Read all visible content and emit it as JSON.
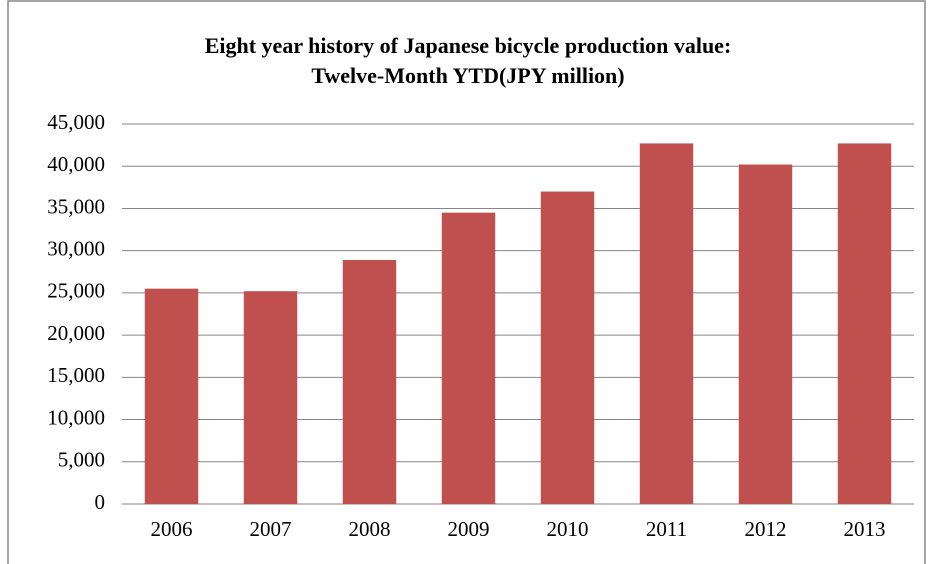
{
  "chart_data": {
    "type": "bar",
    "title": [
      "Eight year history of Japanese bicycle production value:",
      "Twelve-Month YTD(JPY million)"
    ],
    "categories": [
      "2006",
      "2007",
      "2008",
      "2009",
      "2010",
      "2011",
      "2012",
      "2013"
    ],
    "values": [
      25500,
      25200,
      28900,
      34500,
      37000,
      42700,
      40200,
      42700
    ],
    "color": "#c0504d",
    "ylim": [
      0,
      45000
    ],
    "yticks": [
      0,
      {
        "value": 5000,
        "label": "5,000"
      },
      {
        "value": 10000,
        "label": "10,000"
      },
      {
        "value": 15000,
        "label": "15,000"
      },
      {
        "value": 20000,
        "label": "20,000"
      },
      {
        "value": 25000,
        "label": "25,000"
      },
      {
        "value": 30000,
        "label": "30,000"
      },
      {
        "value": 35000,
        "label": "35,000"
      },
      {
        "value": 40000,
        "label": "40,000"
      },
      {
        "value": 45000,
        "label": "45,000"
      }
    ],
    "grid": true
  }
}
